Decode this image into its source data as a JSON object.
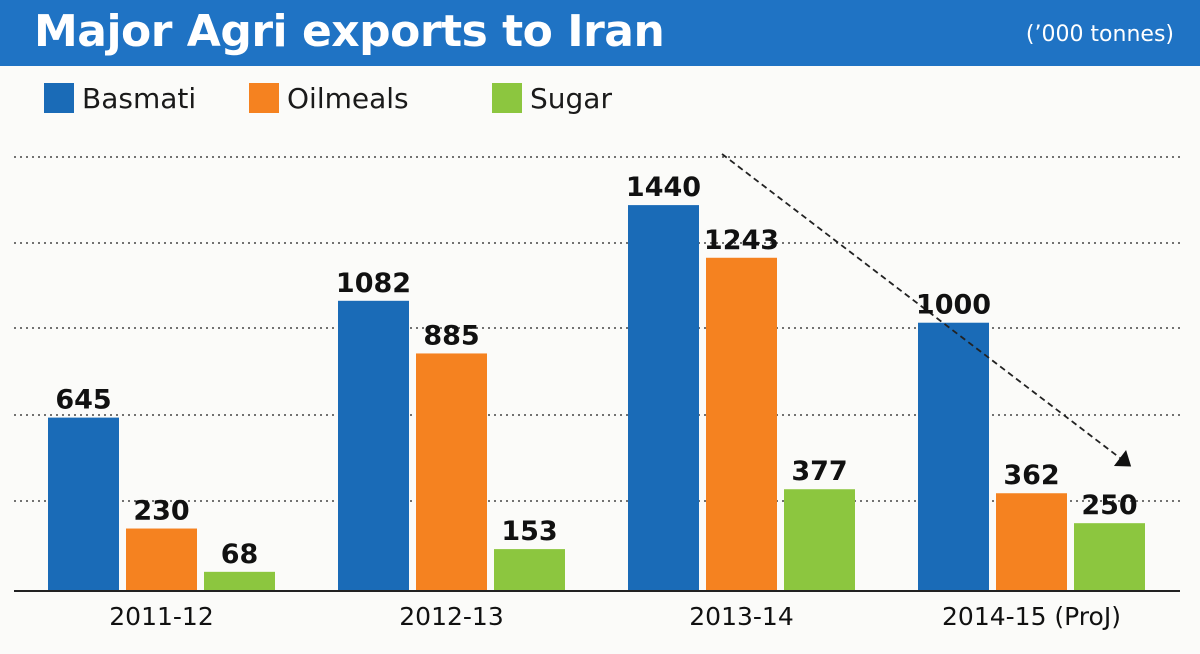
{
  "header": {
    "title": "Major Agri exports to Iran",
    "units": "(’000 tonnes)"
  },
  "colors": {
    "header_bg": "#1f73c4",
    "basmati": "#1a6bb7",
    "oilmeals": "#f58220",
    "sugar": "#8cc63f"
  },
  "chart_data": {
    "type": "bar",
    "title": "Major Agri exports to Iran",
    "ylabel": "(’000 tonnes)",
    "categories": [
      "2011-12",
      "2012-13",
      "2013-14",
      "2014-15 (ProJ)"
    ],
    "series": [
      {
        "name": "Basmati",
        "color": "#1a6bb7",
        "values": [
          645,
          1082,
          1440,
          1000
        ]
      },
      {
        "name": "Oilmeals",
        "color": "#f58220",
        "values": [
          230,
          885,
          1243,
          362
        ]
      },
      {
        "name": "Sugar",
        "color": "#8cc63f",
        "values": [
          68,
          153,
          377,
          250
        ]
      }
    ],
    "ylim": [
      0,
      1700
    ],
    "grid": "dotted horizontal",
    "legend": "top-left",
    "annotations": [
      "dashed arrow from 2013-14 Basmati peak down to 2014-15"
    ]
  }
}
